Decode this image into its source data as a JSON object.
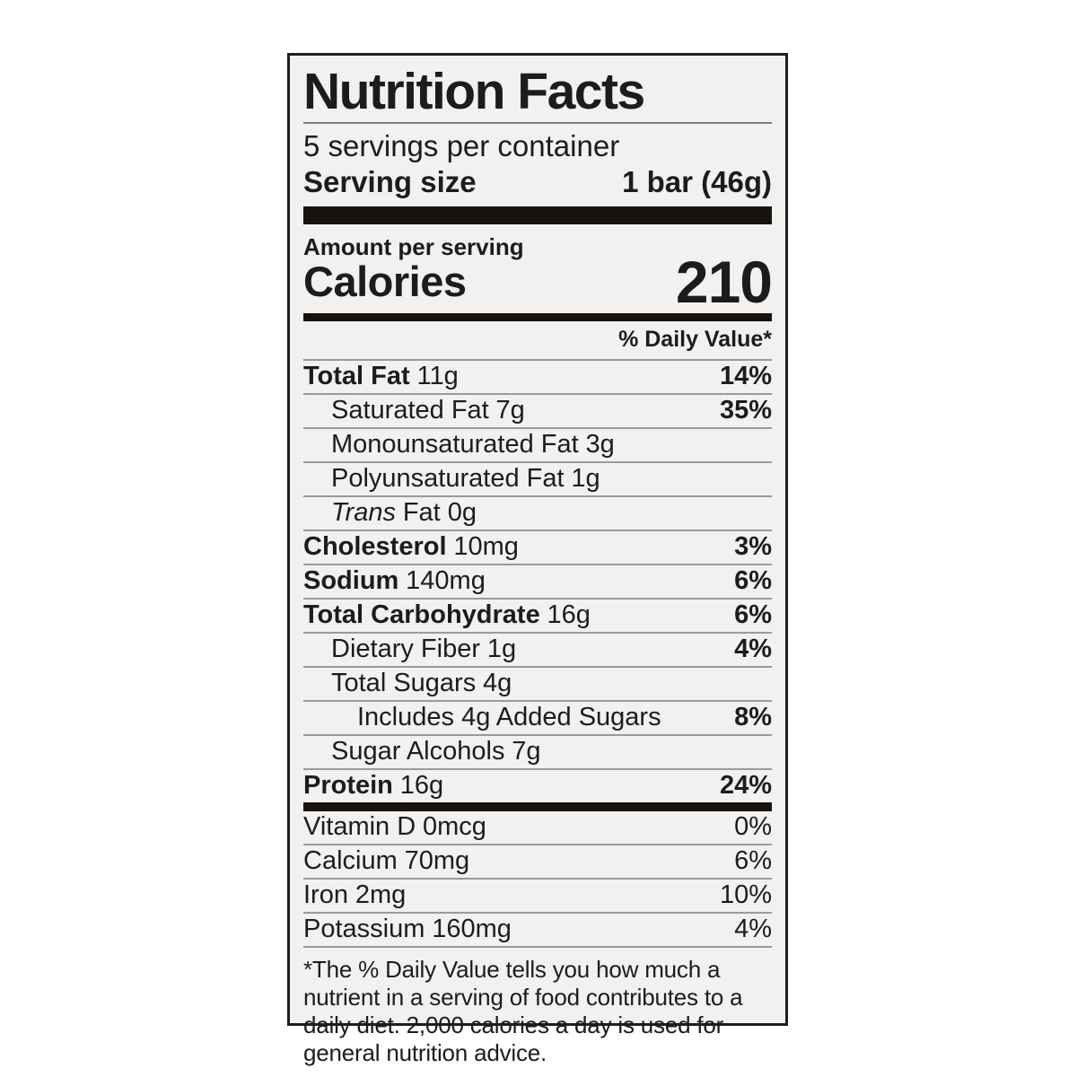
{
  "label": {
    "title": "Nutrition Facts",
    "servings_per_container": "5 servings per container",
    "serving_size_label": "Serving size",
    "serving_size_value": "1 bar (46g)",
    "amount_per_serving": "Amount per serving",
    "calories_label": "Calories",
    "calories_value": "210",
    "daily_value_header": "% Daily Value*",
    "nutrients": [
      {
        "name": "Total Fat",
        "amount": "11g",
        "dv": "14%"
      },
      {
        "name": "Saturated Fat",
        "amount": "7g",
        "dv": "35%"
      },
      {
        "name": "Monounsaturated Fat",
        "amount": "3g",
        "dv": ""
      },
      {
        "name": "Polyunsaturated Fat",
        "amount": "1g",
        "dv": ""
      },
      {
        "name": "Trans",
        "amount": "Fat 0g",
        "dv": ""
      },
      {
        "name": "Cholesterol",
        "amount": "10mg",
        "dv": "3%"
      },
      {
        "name": "Sodium",
        "amount": "140mg",
        "dv": "6%"
      },
      {
        "name": "Total Carbohydrate",
        "amount": "16g",
        "dv": "6%"
      },
      {
        "name": "Dietary Fiber",
        "amount": "1g",
        "dv": "4%"
      },
      {
        "name": "Total Sugars",
        "amount": "4g",
        "dv": ""
      },
      {
        "name": "Includes 4g Added Sugars",
        "amount": "",
        "dv": "8%"
      },
      {
        "name": "Sugar Alcohols",
        "amount": "7g",
        "dv": ""
      },
      {
        "name": "Protein",
        "amount": "16g",
        "dv": "24%"
      }
    ],
    "micronutrients": [
      {
        "name": "Vitamin D",
        "amount": "0mcg",
        "dv": "0%"
      },
      {
        "name": "Calcium",
        "amount": "70mg",
        "dv": "6%"
      },
      {
        "name": "Iron",
        "amount": "2mg",
        "dv": "10%"
      },
      {
        "name": "Potassium",
        "amount": "160mg",
        "dv": "4%"
      }
    ],
    "footnote": "*The % Daily Value tells you how much a nutrient in a serving of food contributes to a daily diet. 2,000 calories a day is used for general nutrition advice.",
    "colors": {
      "label_background": "#f2f1ef",
      "text": "#1d1c1a",
      "thick_bar": "#17140f",
      "hairline": "#9a9a9a",
      "page_background": "#ffffff"
    }
  }
}
